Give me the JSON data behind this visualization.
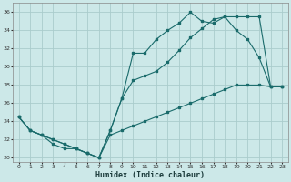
{
  "xlabel": "Humidex (Indice chaleur)",
  "bg_color": "#cce8e8",
  "grid_color": "#aacccc",
  "line_color": "#1a6b6b",
  "xlim": [
    -0.5,
    23.5
  ],
  "ylim": [
    19.5,
    37
  ],
  "xticks": [
    0,
    1,
    2,
    3,
    4,
    5,
    6,
    7,
    8,
    9,
    10,
    11,
    12,
    13,
    14,
    15,
    16,
    17,
    18,
    19,
    20,
    21,
    22,
    23
  ],
  "yticks": [
    20,
    22,
    24,
    26,
    28,
    30,
    32,
    34,
    36
  ],
  "line1_x": [
    0,
    1,
    2,
    3,
    4,
    5,
    6,
    7,
    8,
    9,
    10,
    11,
    12,
    13,
    14,
    15,
    16,
    17,
    18,
    19,
    20,
    21,
    22,
    23
  ],
  "line1_y": [
    24.5,
    23.0,
    22.5,
    22.0,
    21.5,
    21.0,
    20.5,
    20.0,
    23.0,
    26.5,
    31.5,
    31.5,
    33.0,
    34.0,
    34.8,
    36.0,
    35.0,
    34.8,
    35.5,
    34.0,
    33.0,
    31.0,
    27.8,
    27.8
  ],
  "line2_x": [
    0,
    1,
    2,
    3,
    4,
    5,
    6,
    7,
    8,
    9,
    10,
    11,
    12,
    13,
    14,
    15,
    16,
    17,
    18,
    19,
    20,
    21,
    22,
    23
  ],
  "line2_y": [
    24.5,
    23.0,
    22.5,
    22.0,
    21.5,
    21.0,
    20.5,
    20.0,
    23.0,
    26.5,
    28.5,
    29.0,
    29.5,
    30.5,
    31.8,
    33.2,
    34.2,
    35.2,
    35.5,
    35.5,
    35.5,
    35.5,
    27.8,
    27.8
  ],
  "line3_x": [
    0,
    1,
    2,
    3,
    4,
    5,
    6,
    7,
    8,
    9,
    10,
    11,
    12,
    13,
    14,
    15,
    16,
    17,
    18,
    19,
    20,
    21,
    22,
    23
  ],
  "line3_y": [
    24.5,
    23.0,
    22.5,
    21.5,
    21.0,
    21.0,
    20.5,
    20.0,
    22.5,
    23.0,
    23.5,
    24.0,
    24.5,
    25.0,
    25.5,
    26.0,
    26.5,
    27.0,
    27.5,
    28.0,
    28.0,
    28.0,
    27.8,
    27.8
  ]
}
